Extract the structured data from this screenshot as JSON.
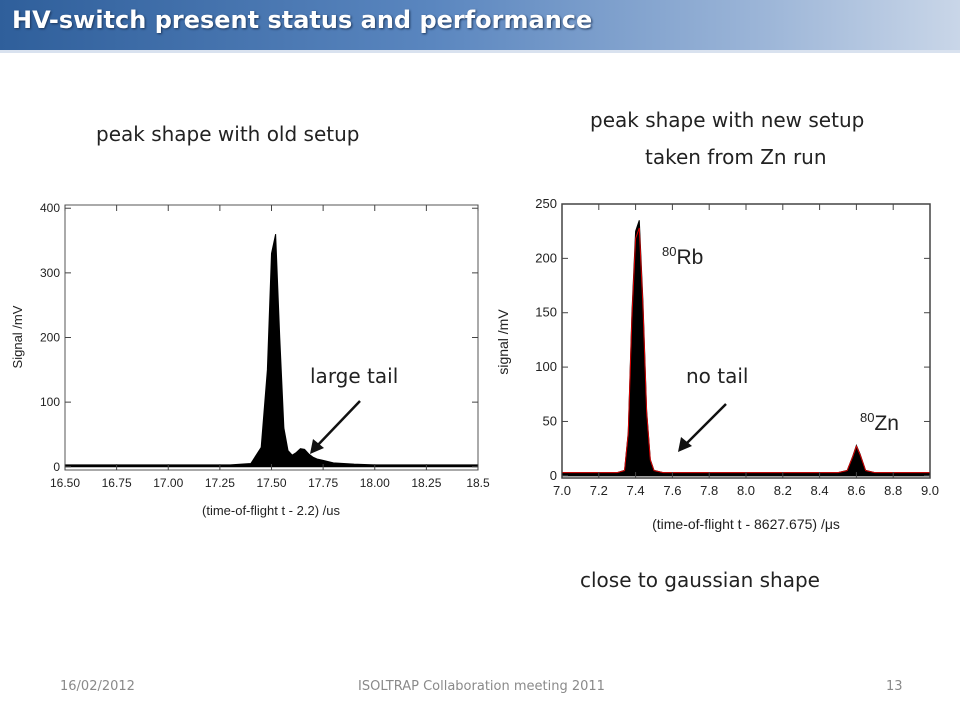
{
  "slide": {
    "title": "HV-switch present status and performance",
    "left_caption": "peak shape with old setup",
    "right_caption_line1": "peak shape with new setup",
    "right_caption_line2": "taken from Zn run",
    "bottom_caption": "close to gaussian shape",
    "annotation_left": "large tail",
    "annotation_right": "no tail"
  },
  "footer": {
    "date": "16/02/2012",
    "event": "ISOLTRAP Collaboration meeting 2011",
    "page": "13"
  },
  "colors": {
    "title_bar": "#3d6aa8",
    "data_fill": "#000000",
    "fit_line": "#d40000"
  },
  "chart_data": [
    {
      "type": "area",
      "xlabel": "(time-of-flight t - 2.2) /us",
      "ylabel": "Signal /mV",
      "xlim": [
        16.5,
        18.5
      ],
      "ylim": [
        -5,
        405
      ],
      "xticks": [
        "16.50",
        "16.75",
        "17.00",
        "17.25",
        "17.50",
        "17.75",
        "18.00",
        "18.25",
        "18.5"
      ],
      "yticks": [
        "0",
        "100",
        "200",
        "300",
        "400"
      ],
      "grid": false,
      "series": [
        {
          "x": [
            16.5,
            17.0,
            17.3,
            17.4,
            17.45,
            17.48,
            17.5,
            17.52,
            17.54,
            17.56,
            17.58,
            17.6,
            17.62,
            17.64,
            17.66,
            17.68,
            17.7,
            17.72,
            17.75,
            17.8,
            17.85,
            17.9,
            18.0,
            18.1,
            18.2,
            18.3,
            18.4,
            18.5
          ],
          "y": [
            3,
            3,
            3,
            5,
            30,
            150,
            330,
            360,
            200,
            60,
            25,
            18,
            22,
            28,
            27,
            20,
            15,
            12,
            10,
            6,
            5,
            4,
            3,
            3,
            3,
            3,
            3,
            3
          ]
        }
      ]
    },
    {
      "type": "area",
      "xlabel": "(time-of-flight t - 8627.675) /μs",
      "ylabel": "signal /mV",
      "xlim": [
        7.0,
        9.0
      ],
      "ylim": [
        -2,
        250
      ],
      "xticks": [
        "7.0",
        "7.2",
        "7.4",
        "7.6",
        "7.8",
        "8.0",
        "8.2",
        "8.4",
        "8.6",
        "8.8",
        "9.0"
      ],
      "yticks": [
        "0",
        "50",
        "100",
        "150",
        "200",
        "250"
      ],
      "grid": false,
      "series": [
        {
          "x": [
            7.0,
            7.3,
            7.34,
            7.36,
            7.38,
            7.4,
            7.42,
            7.44,
            7.46,
            7.48,
            7.5,
            7.55,
            7.6,
            8.0,
            8.5,
            8.55,
            8.58,
            8.6,
            8.62,
            8.65,
            8.7,
            9.0
          ],
          "y": [
            3,
            3,
            5,
            40,
            150,
            225,
            235,
            160,
            60,
            15,
            5,
            3,
            3,
            3,
            3,
            5,
            18,
            28,
            20,
            5,
            3,
            3
          ]
        }
      ],
      "labels": [
        {
          "mass": "80",
          "element": "Rb"
        },
        {
          "mass": "80",
          "element": "Zn"
        }
      ]
    }
  ]
}
